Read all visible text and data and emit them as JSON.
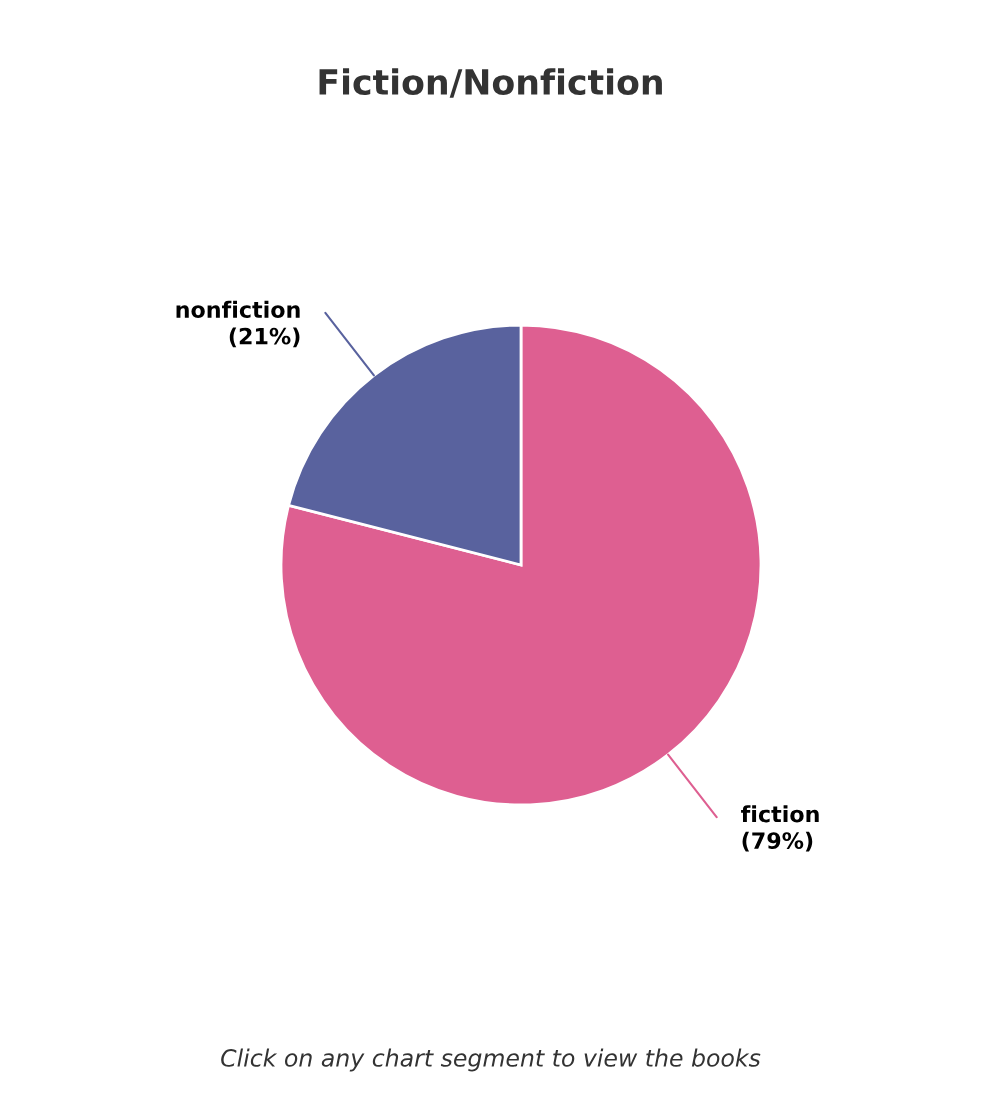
{
  "chart_data": {
    "type": "pie",
    "title": "Fiction/Nonfiction",
    "categories": [
      "fiction",
      "nonfiction"
    ],
    "values": [
      79,
      21
    ],
    "value_labels": [
      "(79%)",
      "(21%)"
    ],
    "colors": [
      "#de5f91",
      "#59629e"
    ],
    "annotations": [
      "Click on any chart segment to view the books"
    ]
  }
}
